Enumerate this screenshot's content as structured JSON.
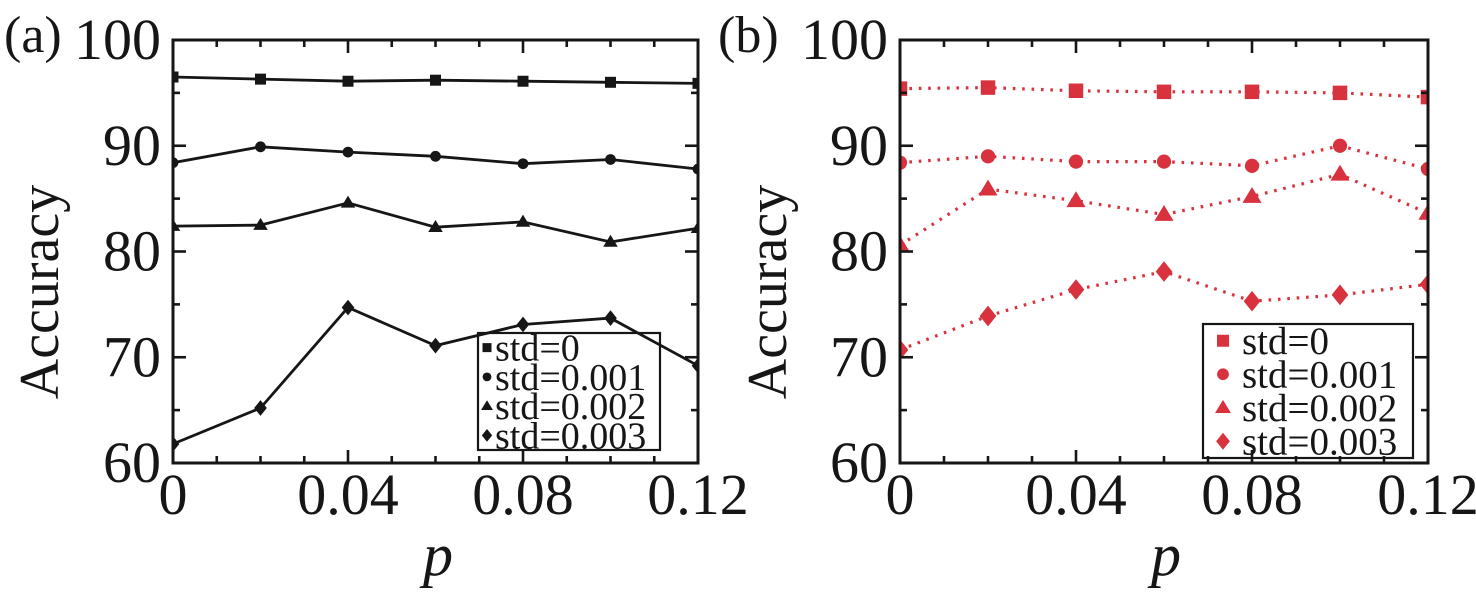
{
  "figure": {
    "background": "#ffffff",
    "text_color": "#161616",
    "panel_a_color": "#161616",
    "panel_b_color": "#d8323e"
  },
  "chart_data": [
    {
      "type": "line",
      "panel_label": "(a)",
      "xlabel": "p",
      "ylabel": "Accuracy",
      "color": "#161616",
      "line_style": "solid",
      "grid": false,
      "legend_position": "inside-lower-right",
      "xlim": [
        0,
        0.12
      ],
      "ylim": [
        60,
        100
      ],
      "x_major_ticks": [
        0,
        0.04,
        0.08,
        0.12
      ],
      "x_tick_labels": [
        "0",
        "0.04",
        "0.08",
        "0.12"
      ],
      "x_minor_step": 0.01,
      "y_major_ticks": [
        100,
        90,
        80,
        70,
        60
      ],
      "y_tick_labels": [
        "100",
        "90",
        "80",
        "70",
        "60"
      ],
      "y_minor_step": 5,
      "x": [
        0,
        0.02,
        0.04,
        0.06,
        0.08,
        0.1,
        0.12
      ],
      "series": [
        {
          "name": "std=0",
          "marker": "square",
          "values": [
            96.5,
            96.3,
            96.1,
            96.2,
            96.1,
            96.0,
            95.9
          ]
        },
        {
          "name": "std=0.001",
          "marker": "circle",
          "values": [
            88.4,
            89.9,
            89.4,
            89.0,
            88.3,
            88.7,
            87.8
          ]
        },
        {
          "name": "std=0.002",
          "marker": "triangle",
          "values": [
            82.4,
            82.5,
            84.6,
            82.3,
            82.8,
            80.9,
            82.2
          ]
        },
        {
          "name": "std=0.003",
          "marker": "diamond",
          "values": [
            61.8,
            65.2,
            74.7,
            71.1,
            73.1,
            73.7,
            69.2
          ]
        }
      ]
    },
    {
      "type": "line",
      "panel_label": "(b)",
      "xlabel": "p",
      "ylabel": "Accuracy",
      "color": "#d8323e",
      "line_style": "dotted",
      "grid": false,
      "legend_position": "inside-lower-right",
      "xlim": [
        0,
        0.12
      ],
      "ylim": [
        60,
        100
      ],
      "x_major_ticks": [
        0,
        0.04,
        0.08,
        0.12
      ],
      "x_tick_labels": [
        "0",
        "0.04",
        "0.08",
        "0.12"
      ],
      "x_minor_step": 0.01,
      "y_major_ticks": [
        100,
        90,
        80,
        70,
        60
      ],
      "y_tick_labels": [
        "100",
        "90",
        "80",
        "70",
        "60"
      ],
      "y_minor_step": 5,
      "x": [
        0,
        0.02,
        0.04,
        0.06,
        0.08,
        0.1,
        0.12
      ],
      "series": [
        {
          "name": "std=0",
          "marker": "square",
          "values": [
            95.4,
            95.5,
            95.2,
            95.1,
            95.1,
            95.0,
            94.6
          ]
        },
        {
          "name": "std=0.001",
          "marker": "circle",
          "values": [
            88.4,
            89.0,
            88.5,
            88.5,
            88.1,
            90.0,
            87.8
          ]
        },
        {
          "name": "std=0.002",
          "marker": "triangle",
          "values": [
            80.6,
            85.9,
            84.8,
            83.5,
            85.2,
            87.3,
            83.6
          ]
        },
        {
          "name": "std=0.003",
          "marker": "diamond",
          "values": [
            70.7,
            73.9,
            76.4,
            78.1,
            75.3,
            75.9,
            76.9
          ]
        }
      ]
    }
  ]
}
